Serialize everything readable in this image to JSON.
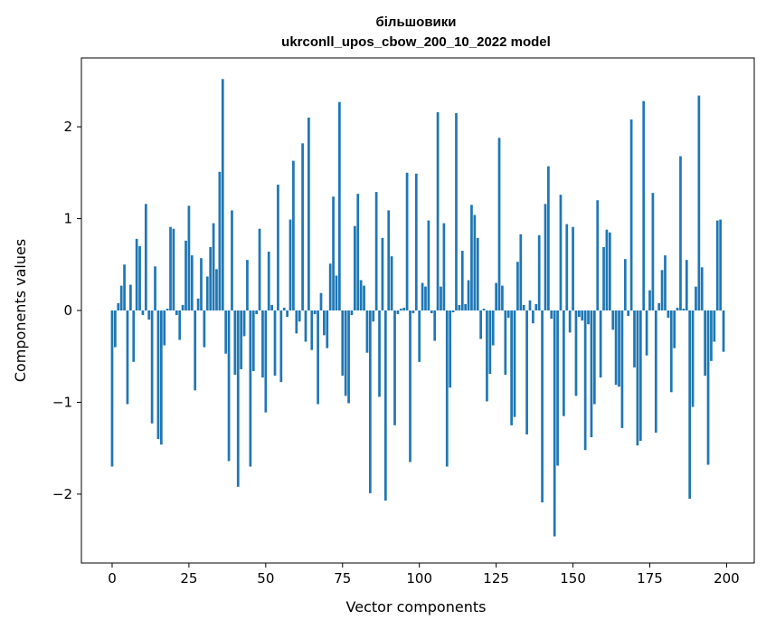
{
  "chart_data": {
    "type": "bar",
    "title": "більшовики",
    "subtitle": "ukrconll_upos_cbow_200_10_2022 model",
    "xlabel": "Vector components",
    "ylabel": "Components values",
    "xlim": [
      -10,
      209
    ],
    "ylim": [
      -2.75,
      2.75
    ],
    "xticks": [
      0,
      25,
      50,
      75,
      100,
      125,
      150,
      175,
      200
    ],
    "yticks": [
      -2,
      -1,
      0,
      1,
      2
    ],
    "xtick_labels": [
      "0",
      "25",
      "50",
      "75",
      "100",
      "125",
      "150",
      "175",
      "200"
    ],
    "ytick_labels": [
      "−2",
      "−1",
      "0",
      "1",
      "2"
    ],
    "grid": false,
    "bar_color": "#1f77b4",
    "x": [
      0,
      1,
      2,
      3,
      4,
      5,
      6,
      7,
      8,
      9,
      10,
      11,
      12,
      13,
      14,
      15,
      16,
      17,
      18,
      19,
      20,
      21,
      22,
      23,
      24,
      25,
      26,
      27,
      28,
      29,
      30,
      31,
      32,
      33,
      34,
      35,
      36,
      37,
      38,
      39,
      40,
      41,
      42,
      43,
      44,
      45,
      46,
      47,
      48,
      49,
      50,
      51,
      52,
      53,
      54,
      55,
      56,
      57,
      58,
      59,
      60,
      61,
      62,
      63,
      64,
      65,
      66,
      67,
      68,
      69,
      70,
      71,
      72,
      73,
      74,
      75,
      76,
      77,
      78,
      79,
      80,
      81,
      82,
      83,
      84,
      85,
      86,
      87,
      88,
      89,
      90,
      91,
      92,
      93,
      94,
      95,
      96,
      97,
      98,
      99,
      100,
      101,
      102,
      103,
      104,
      105,
      106,
      107,
      108,
      109,
      110,
      111,
      112,
      113,
      114,
      115,
      116,
      117,
      118,
      119,
      120,
      121,
      122,
      123,
      124,
      125,
      126,
      127,
      128,
      129,
      130,
      131,
      132,
      133,
      134,
      135,
      136,
      137,
      138,
      139,
      140,
      141,
      142,
      143,
      144,
      145,
      146,
      147,
      148,
      149,
      150,
      151,
      152,
      153,
      154,
      155,
      156,
      157,
      158,
      159,
      160,
      161,
      162,
      163,
      164,
      165,
      166,
      167,
      168,
      169,
      170,
      171,
      172,
      173,
      174,
      175,
      176,
      177,
      178,
      179,
      180,
      181,
      182,
      183,
      184,
      185,
      186,
      187,
      188,
      189,
      190,
      191,
      192,
      193,
      194,
      195,
      196,
      197,
      198,
      199
    ],
    "values": [
      -1.7,
      -0.4,
      0.08,
      0.27,
      0.5,
      -1.02,
      0.28,
      -0.56,
      0.78,
      0.7,
      -0.05,
      1.16,
      -0.1,
      -1.23,
      0.48,
      -1.4,
      -1.46,
      -0.38,
      0.02,
      0.91,
      0.89,
      -0.05,
      -0.32,
      0.06,
      0.76,
      1.14,
      0.6,
      -0.87,
      0.13,
      0.57,
      -0.4,
      0.37,
      0.69,
      0.95,
      0.45,
      1.51,
      2.52,
      -0.47,
      -1.64,
      1.09,
      -0.7,
      -1.92,
      -0.64,
      -0.28,
      0.55,
      -1.7,
      -0.66,
      -0.04,
      0.89,
      -0.73,
      -1.11,
      0.64,
      0.06,
      -0.71,
      1.37,
      -0.78,
      0.03,
      -0.07,
      0.99,
      1.63,
      -0.25,
      -0.12,
      1.82,
      -0.34,
      2.1,
      -0.43,
      -0.04,
      -1.02,
      0.19,
      -0.27,
      -0.41,
      0.51,
      1.24,
      0.38,
      2.27,
      -0.71,
      -0.93,
      -1.01,
      -0.05,
      0.92,
      1.27,
      0.33,
      0.27,
      -0.46,
      -1.99,
      -0.12,
      1.29,
      -0.94,
      0.79,
      -2.07,
      1.09,
      0.59,
      -1.25,
      -0.04,
      0.02,
      0.03,
      1.5,
      -1.65,
      -0.03,
      1.49,
      -0.56,
      0.3,
      0.26,
      0.98,
      -0.03,
      -0.33,
      2.16,
      0.26,
      0.95,
      -1.7,
      -0.84,
      -0.02,
      2.15,
      0.06,
      0.65,
      0.07,
      0.33,
      1.15,
      1.04,
      0.79,
      -0.31,
      0.02,
      -0.99,
      -0.69,
      -0.38,
      0.3,
      1.88,
      0.27,
      -0.7,
      -0.08,
      -1.25,
      -1.16,
      0.53,
      0.83,
      0.06,
      -1.35,
      0.11,
      -0.14,
      0.07,
      0.82,
      -2.09,
      1.16,
      1.57,
      -0.09,
      -2.46,
      -1.69,
      1.26,
      -1.15,
      0.94,
      -0.24,
      0.91,
      -0.93,
      -0.07,
      -0.11,
      -1.52,
      -0.15,
      -1.38,
      -1.02,
      1.2,
      -0.73,
      0.69,
      0.88,
      0.85,
      -0.21,
      -0.81,
      -0.83,
      -1.28,
      0.56,
      -0.06,
      2.08,
      -0.62,
      -1.47,
      -1.42,
      2.28,
      -0.49,
      0.22,
      1.28,
      -1.33,
      0.08,
      0.44,
      0.6,
      -0.08,
      -0.89,
      -0.41,
      0.03,
      1.68,
      0.02,
      0.55,
      -2.05,
      -1.05,
      0.26,
      2.34,
      0.47,
      -0.71,
      -1.68,
      -0.55,
      -0.34,
      0.98,
      0.99,
      -0.45
    ]
  }
}
